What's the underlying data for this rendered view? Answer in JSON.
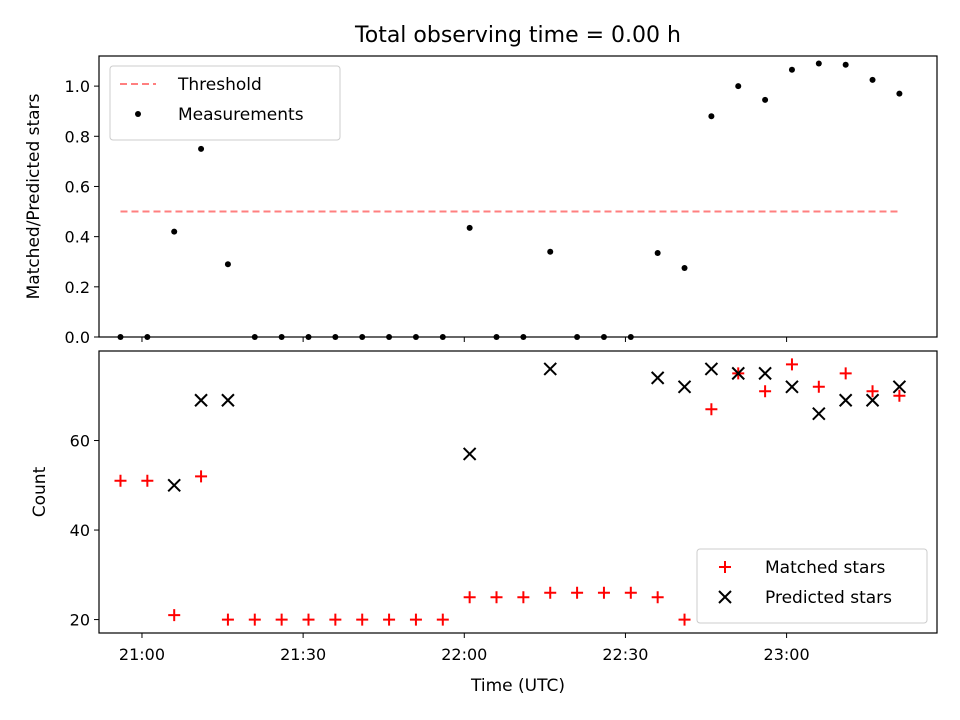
{
  "figure": {
    "title": "Total observing time = 0.00 h"
  },
  "chart_data": [
    {
      "type": "scatter",
      "title": "Total observing time = 0.00 h",
      "ylabel": "Matched/Predicted stars",
      "xlabel": "",
      "xlim": [
        "20:52",
        "23:28"
      ],
      "ylim": [
        0,
        1.12
      ],
      "yticks": [
        0.0,
        0.2,
        0.4,
        0.6,
        0.8,
        1.0
      ],
      "ytick_labels": [
        "0.0",
        "0.2",
        "0.4",
        "0.6",
        "0.8",
        "1.0"
      ],
      "xticks": [
        "21:00",
        "21:30",
        "22:00",
        "22:30",
        "23:00"
      ],
      "xtick_labels_visible": false,
      "legend_position": "top-left",
      "series": [
        {
          "name": "Threshold",
          "style": "dashed-line",
          "color": "#ff7f7f",
          "x": [
            "20:56",
            "23:21"
          ],
          "y": [
            0.5,
            0.5
          ]
        },
        {
          "name": "Measurements",
          "style": "dot",
          "color": "#000000",
          "x": [
            "20:56",
            "21:01",
            "21:06",
            "21:11",
            "21:16",
            "21:21",
            "21:26",
            "21:31",
            "21:36",
            "21:41",
            "21:46",
            "21:51",
            "21:56",
            "22:01",
            "22:06",
            "22:11",
            "22:16",
            "22:21",
            "22:26",
            "22:31",
            "22:36",
            "22:41",
            "22:46",
            "22:51",
            "22:56",
            "23:01",
            "23:06",
            "23:11",
            "23:16",
            "23:21"
          ],
          "y": [
            0.0,
            0.0,
            0.42,
            0.75,
            0.29,
            0.0,
            0.0,
            0.0,
            0.0,
            0.0,
            0.0,
            0.0,
            0.0,
            0.435,
            0.0,
            0.0,
            0.34,
            0.0,
            0.0,
            0.0,
            0.335,
            0.275,
            0.88,
            1.0,
            0.945,
            1.065,
            1.09,
            1.085,
            1.025,
            0.97
          ]
        }
      ]
    },
    {
      "type": "scatter",
      "title": "",
      "ylabel": "Count",
      "xlabel": "Time (UTC)",
      "xlim": [
        "20:52",
        "23:28"
      ],
      "ylim": [
        17,
        80
      ],
      "yticks": [
        20,
        40,
        60
      ],
      "ytick_labels": [
        "20",
        "40",
        "60"
      ],
      "xticks": [
        "21:00",
        "21:30",
        "22:00",
        "22:30",
        "23:00"
      ],
      "xtick_labels": [
        "21:00",
        "21:30",
        "22:00",
        "22:30",
        "23:00"
      ],
      "legend_position": "bottom-right",
      "series": [
        {
          "name": "Matched stars",
          "style": "plus",
          "color": "#ff0000",
          "x": [
            "20:56",
            "21:01",
            "21:06",
            "21:11",
            "21:16",
            "21:21",
            "21:26",
            "21:31",
            "21:36",
            "21:41",
            "21:46",
            "21:51",
            "21:56",
            "22:01",
            "22:06",
            "22:11",
            "22:16",
            "22:21",
            "22:26",
            "22:31",
            "22:36",
            "22:41",
            "22:46",
            "22:51",
            "22:56",
            "23:01",
            "23:06",
            "23:11",
            "23:16",
            "23:21"
          ],
          "y": [
            51,
            51,
            21,
            52,
            20,
            20,
            20,
            20,
            20,
            20,
            20,
            20,
            20,
            25,
            25,
            25,
            26,
            26,
            26,
            26,
            25,
            20,
            67,
            75,
            71,
            77,
            72,
            75,
            71,
            70
          ]
        },
        {
          "name": "Predicted stars",
          "style": "x",
          "color": "#000000",
          "x": [
            "21:06",
            "21:11",
            "21:16",
            "22:01",
            "22:16",
            "22:36",
            "22:41",
            "22:46",
            "22:51",
            "22:56",
            "23:01",
            "23:06",
            "23:11",
            "23:16",
            "23:21"
          ],
          "y": [
            50,
            69,
            69,
            57,
            76,
            74,
            72,
            76,
            75,
            75,
            72,
            66,
            69,
            69,
            72
          ]
        }
      ]
    }
  ]
}
